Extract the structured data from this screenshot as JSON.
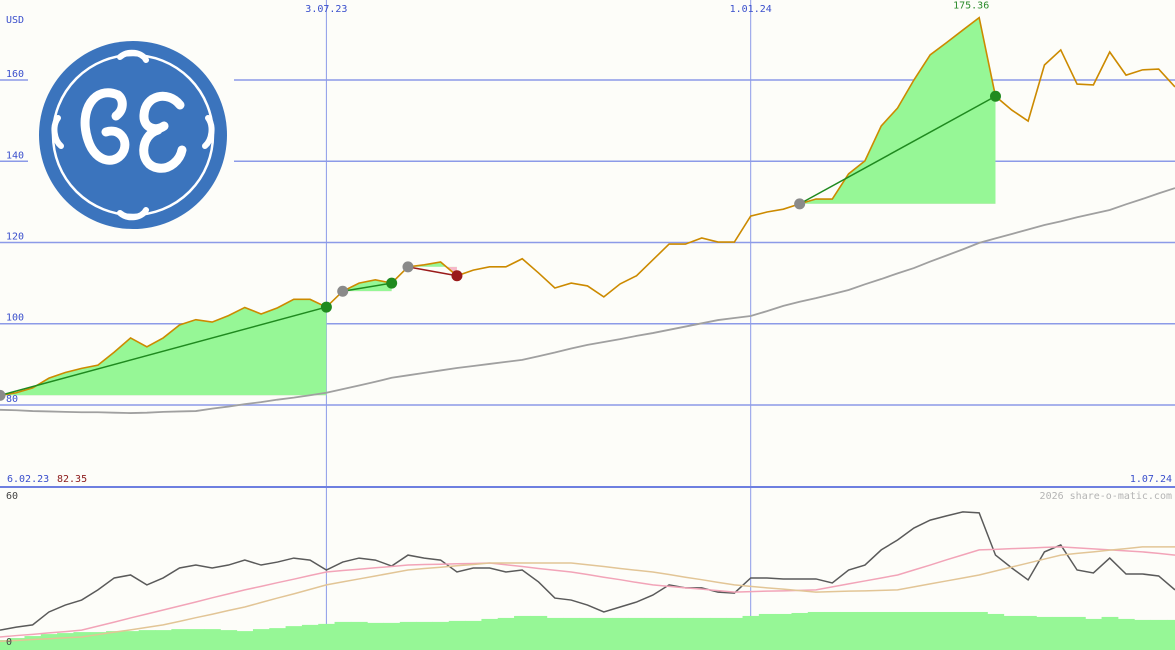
{
  "chart_data": [
    {
      "type": "line",
      "y_label": "USD",
      "categories": [
        "6.02.23",
        null,
        null,
        null,
        null,
        null,
        null,
        null,
        null,
        null,
        null,
        null,
        null,
        null,
        null,
        null,
        null,
        null,
        null,
        null,
        "3.07.23",
        null,
        null,
        null,
        null,
        null,
        null,
        null,
        null,
        null,
        null,
        null,
        null,
        null,
        null,
        null,
        null,
        null,
        null,
        null,
        null,
        null,
        null,
        null,
        null,
        null,
        "1.01.24",
        null,
        null,
        null,
        null,
        null,
        null,
        null,
        null,
        null,
        null,
        null,
        null,
        null,
        null,
        null,
        null,
        null,
        null,
        null,
        null,
        null,
        null,
        null,
        null,
        null,
        "1.07.24"
      ],
      "series": [
        {
          "color": "#cc8a00",
          "values": [
            82.35,
            83,
            84.2,
            86.6,
            88,
            89,
            89.8,
            93,
            96.5,
            94.3,
            96.5,
            99.7,
            101,
            100.4,
            102,
            104,
            102.4,
            103.9,
            106,
            106,
            104.1,
            108,
            110,
            110.8,
            110,
            114,
            114.5,
            115.2,
            111.8,
            113.2,
            114,
            114,
            116,
            112.5,
            108.8,
            110,
            109.3,
            106.6,
            109.8,
            111.8,
            115.7,
            119.6,
            119.6,
            121.1,
            120.1,
            120.1,
            126.5,
            127.5,
            128.2,
            129.5,
            130.7,
            130.7,
            136.9,
            140.1,
            148.7,
            153.1,
            160,
            166.2,
            169.2,
            172.3,
            175.36,
            156,
            152.6,
            149.9,
            163.7,
            167.4,
            159,
            158.8,
            166.9,
            161.2,
            162.5,
            162.7,
            158.3
          ]
        },
        {
          "color": "#a0a0a0",
          "values": [
            78.8,
            78.7,
            78.5,
            78.4,
            78.3,
            78.2,
            78.2,
            78.1,
            78.0,
            78.1,
            78.3,
            78.4,
            78.5,
            79.1,
            79.6,
            80.2,
            80.7,
            81.3,
            81.8,
            82.4,
            83.0,
            83.9,
            84.8,
            85.7,
            86.7,
            87.3,
            87.9,
            88.5,
            89.1,
            89.6,
            90.1,
            90.6,
            91.1,
            92.0,
            92.9,
            93.9,
            94.8,
            95.5,
            96.2,
            97.0,
            97.7,
            98.5,
            99.3,
            100.1,
            100.9,
            101.4,
            101.9,
            103.1,
            104.4,
            105.4,
            106.3,
            107.3,
            108.3,
            109.7,
            111.0,
            112.4,
            113.7,
            115.3,
            116.8,
            118.3,
            119.9,
            121.0,
            122.1,
            123.2,
            124.3,
            125.2,
            126.2,
            127.1,
            128.0,
            129.4,
            130.7,
            132.1,
            133.4
          ]
        }
      ],
      "ylim": [
        59.8,
        179.7
      ],
      "yticks": [
        80,
        100,
        120,
        140,
        160
      ],
      "grid": true,
      "grid_color": "#8c9ae8",
      "trades": [
        {
          "entry": 0,
          "exit": 20,
          "color": "#1f8a1f"
        },
        {
          "entry": 21,
          "exit": 24,
          "color": "#1f8a1f"
        },
        {
          "entry": 25,
          "exit": 28,
          "color": "#9a1a1a"
        },
        {
          "entry": 49,
          "exit": 61,
          "color": "#1f8a1f"
        }
      ],
      "gain_fill": "#96f796",
      "loss_fill": "#f6b9c9",
      "entry_color": "#8a8a8a",
      "high_color": "#2a8a2a",
      "low_color": "#8b1a1a"
    },
    {
      "type": "indicator",
      "source": "2026 share-o-matic.com",
      "ylim": [
        0,
        60
      ],
      "yticks": [
        0,
        60
      ],
      "series": [
        {
          "color": "#5a5a5a",
          "values": [
            6.0,
            7.2,
            8.1,
            13.3,
            16.1,
            18.1,
            22.2,
            27.0,
            28.2,
            24.2,
            27.0,
            31.0,
            32.2,
            31.0,
            32.2,
            34.2,
            32.2,
            33.4,
            35.0,
            34.2,
            30.2,
            33.4,
            35.0,
            34.2,
            31.8,
            36.2,
            35.0,
            34.2,
            29.4,
            31.0,
            31.0,
            29.4,
            30.2,
            25.4,
            18.9,
            18.1,
            16.1,
            13.3,
            15.3,
            17.3,
            20.1,
            24.2,
            23.0,
            23.0,
            21.3,
            20.9,
            27.0,
            27.0,
            26.6,
            26.6,
            26.6,
            25.0,
            30.2,
            32.2,
            38.3,
            42.3,
            47.1,
            50.3,
            52.0,
            53.6,
            53.2,
            36.2,
            31.0,
            26.2,
            37.5,
            40.3,
            30.2,
            29.0,
            35.0,
            28.6,
            28.6,
            27.8,
            22.2
          ]
        },
        {
          "color": "#f2a4b8",
          "values": [
            3.2,
            3.8,
            4.3,
            4.9,
            5.4,
            6.0,
            7.6,
            9.2,
            10.9,
            12.5,
            14.1,
            15.7,
            17.3,
            19.0,
            20.6,
            22.2,
            23.6,
            25.1,
            26.5,
            28.0,
            29.4,
            30.0,
            30.5,
            31.1,
            31.6,
            32.2,
            32.4,
            32.5,
            32.7,
            32.8,
            33.0,
            32.3,
            31.6,
            30.8,
            30.1,
            29.4,
            28.4,
            27.3,
            26.3,
            25.2,
            24.2,
            23.6,
            23.0,
            22.5,
            21.9,
            21.3,
            21.5,
            21.7,
            21.8,
            22.0,
            22.2,
            23.4,
            24.6,
            25.8,
            27.0,
            28.2,
            30.2,
            32.2,
            34.3,
            36.3,
            38.3,
            38.5,
            38.8,
            39.0,
            39.3,
            39.5,
            39.1,
            38.7,
            38.3,
            37.9,
            37.5,
            36.9,
            36.2
          ]
        },
        {
          "color": "#e2c596",
          "values": [
            1.5,
            1.8,
            2.2,
            2.5,
            2.9,
            3.2,
            4.2,
            5.2,
            6.1,
            7.1,
            8.1,
            9.5,
            11.0,
            12.4,
            13.9,
            15.3,
            17.1,
            18.9,
            20.6,
            22.4,
            24.2,
            25.4,
            26.6,
            27.8,
            29.0,
            30.2,
            30.8,
            31.3,
            31.9,
            32.4,
            33.0,
            33.0,
            33.0,
            33.0,
            33.0,
            33.0,
            32.3,
            31.6,
            30.8,
            30.1,
            29.4,
            28.4,
            27.3,
            26.3,
            25.2,
            24.2,
            23.6,
            23.0,
            22.5,
            21.9,
            21.3,
            21.5,
            21.7,
            21.8,
            22.0,
            22.2,
            23.4,
            24.6,
            25.8,
            27.0,
            28.2,
            29.8,
            31.4,
            33.0,
            34.6,
            36.2,
            36.9,
            37.5,
            38.2,
            38.8,
            39.5,
            39.5,
            39.5
          ]
        }
      ],
      "volume": {
        "color": "#96f796",
        "values": [
          2.0,
          2.8,
          3.6,
          4.4,
          4.8,
          5.2,
          5.2,
          5.6,
          5.6,
          6.0,
          6.0,
          6.4,
          6.4,
          6.4,
          6.0,
          5.6,
          6.4,
          6.8,
          7.6,
          8.1,
          8.5,
          9.3,
          9.3,
          8.9,
          8.9,
          9.3,
          9.3,
          9.3,
          9.7,
          9.7,
          10.5,
          10.9,
          11.7,
          11.7,
          10.9,
          10.9,
          10.9,
          10.9,
          10.9,
          10.9,
          10.9,
          10.9,
          10.9,
          10.9,
          10.9,
          10.9,
          11.7,
          12.5,
          12.5,
          12.9,
          13.3,
          13.3,
          13.3,
          13.3,
          13.3,
          13.3,
          13.3,
          13.3,
          13.3,
          13.3,
          13.3,
          12.5,
          11.7,
          11.7,
          11.3,
          11.3,
          11.3,
          10.5,
          11.3,
          10.5,
          10.1,
          10.1,
          10.1
        ]
      }
    }
  ]
}
